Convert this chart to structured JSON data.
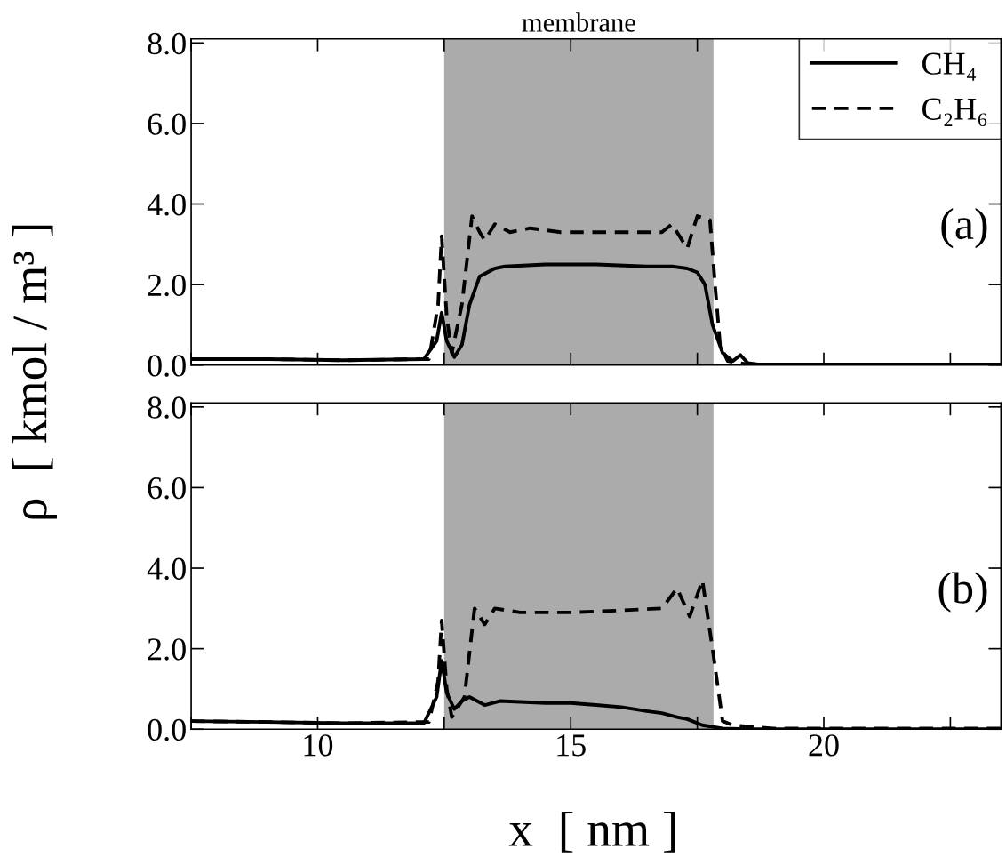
{
  "chart_data": [
    {
      "type": "line",
      "ylabel": "ρ  [ kmol / m³ ]",
      "annotations": [
        "(a)"
      ],
      "xlim": [
        7.5,
        23.5
      ],
      "xticks": [
        {
          "value": 7.5,
          "label": null
        },
        10,
        {
          "value": 12.5,
          "label": null
        },
        15,
        {
          "value": 17.5,
          "label": null
        },
        20,
        {
          "value": 22.5,
          "label": null
        }
      ],
      "ylim": [
        0,
        8.1
      ],
      "yticks": [
        {
          "value": 0,
          "label": "0.0"
        },
        {
          "value": 2,
          "label": "2.0"
        },
        {
          "value": 4,
          "label": "4.0"
        },
        {
          "value": 6,
          "label": "6.0"
        },
        {
          "value": 8,
          "label": "8.0"
        }
      ],
      "tick_labels": "y",
      "legend": "top right",
      "grid": false,
      "bands": [
        {
          "axis": "x",
          "from": 12.5,
          "to": 17.82,
          "label": "membrane",
          "color": "#ababab"
        }
      ],
      "series": [
        {
          "name": "CH₄",
          "color": "#000000",
          "line_style": "solid",
          "x": [
            7.5,
            9,
            10.5,
            12.1,
            12.35,
            12.45,
            12.55,
            12.7,
            12.85,
            13.0,
            13.2,
            13.5,
            13.7,
            14.5,
            15.5,
            16.5,
            17.0,
            17.3,
            17.5,
            17.65,
            17.8,
            18.0,
            18.2,
            18.35,
            18.5,
            18.7,
            20,
            23.5
          ],
          "values": [
            0.15,
            0.15,
            0.12,
            0.15,
            0.6,
            1.3,
            0.6,
            0.2,
            0.5,
            1.5,
            2.2,
            2.4,
            2.45,
            2.5,
            2.5,
            2.45,
            2.45,
            2.4,
            2.3,
            2.0,
            1.0,
            0.3,
            0.1,
            0.25,
            0.05,
            0.02,
            0.02,
            0.02
          ]
        },
        {
          "name": "C₂H₆",
          "color": "#000000",
          "line_style": "dashed",
          "x": [
            7.5,
            9,
            10.5,
            12.2,
            12.38,
            12.45,
            12.55,
            12.65,
            12.85,
            13.05,
            13.2,
            13.3,
            13.5,
            13.8,
            14.2,
            14.8,
            15.5,
            16.2,
            16.8,
            17.0,
            17.3,
            17.5,
            17.75,
            17.85,
            17.95,
            18.1,
            18.5,
            20,
            23.5
          ],
          "values": [
            0.15,
            0.15,
            0.12,
            0.15,
            1.5,
            3.2,
            1.2,
            0.3,
            1.5,
            3.7,
            3.3,
            3.1,
            3.5,
            3.3,
            3.4,
            3.3,
            3.3,
            3.3,
            3.3,
            3.5,
            2.9,
            3.7,
            3.6,
            2.0,
            0.5,
            0.1,
            0.02,
            0.02,
            0.02
          ]
        }
      ]
    },
    {
      "type": "line",
      "xlabel": "x  [ nm ]",
      "annotations": [
        "(b)"
      ],
      "xlim": [
        7.5,
        23.5
      ],
      "xticks": [
        {
          "value": 7.5,
          "label": null
        },
        10,
        {
          "value": 12.5,
          "label": null
        },
        15,
        {
          "value": 17.5,
          "label": null
        },
        20,
        {
          "value": 22.5,
          "label": null
        }
      ],
      "ylim": [
        0,
        8.1
      ],
      "yticks": [
        {
          "value": 0,
          "label": "0.0"
        },
        {
          "value": 2,
          "label": "2.0"
        },
        {
          "value": 4,
          "label": "4.0"
        },
        {
          "value": 6,
          "label": "6.0"
        },
        {
          "value": 8,
          "label": "8.0"
        }
      ],
      "grid": false,
      "bands": [
        {
          "axis": "x",
          "from": 12.5,
          "to": 17.82,
          "color": "#ababab"
        }
      ],
      "series": [
        {
          "color": "#000000",
          "line_style": "solid",
          "x": [
            7.5,
            9,
            10.5,
            12.1,
            12.35,
            12.45,
            12.55,
            12.7,
            12.85,
            13.0,
            13.3,
            13.6,
            14.5,
            15.0,
            15.5,
            16.0,
            16.5,
            16.8,
            17.1,
            17.3,
            17.6,
            18.0,
            18.5,
            20,
            23.5
          ],
          "values": [
            0.2,
            0.18,
            0.15,
            0.15,
            0.8,
            1.7,
            0.9,
            0.5,
            0.7,
            0.8,
            0.6,
            0.7,
            0.65,
            0.65,
            0.6,
            0.55,
            0.45,
            0.4,
            0.3,
            0.25,
            0.1,
            0.02,
            0.0,
            0.0,
            0.0
          ]
        },
        {
          "color": "#000000",
          "line_style": "dashed",
          "x": [
            7.5,
            9,
            10.5,
            12.2,
            12.38,
            12.45,
            12.55,
            12.65,
            12.9,
            13.1,
            13.3,
            13.5,
            14.0,
            15.0,
            16.0,
            16.8,
            17.1,
            17.35,
            17.6,
            17.8,
            18.0,
            18.2,
            19.0,
            23.5
          ],
          "values": [
            0.2,
            0.18,
            0.15,
            0.18,
            1.2,
            2.7,
            1.0,
            0.3,
            0.8,
            3.0,
            2.6,
            3.0,
            2.9,
            2.9,
            2.95,
            3.0,
            3.5,
            2.8,
            3.7,
            2.0,
            0.2,
            0.1,
            0.02,
            0.02
          ]
        }
      ]
    }
  ]
}
